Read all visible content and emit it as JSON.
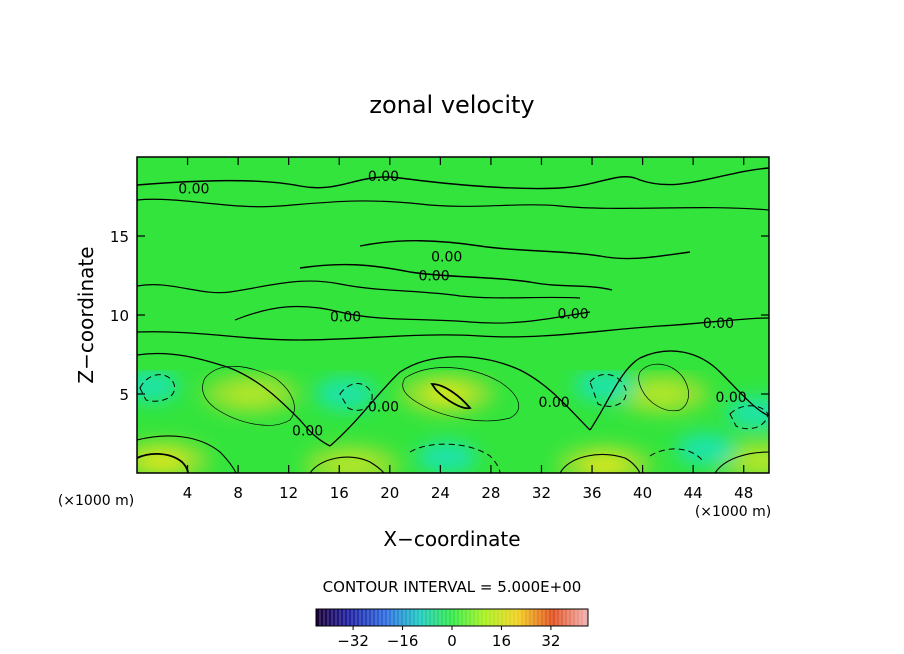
{
  "chart_data": {
    "type": "heatmap",
    "title": "zonal velocity",
    "xlabel": "X−coordinate",
    "ylabel": "Z−coordinate",
    "x_units_left": "(×1000 m)",
    "x_units_right": "(×1000 m)",
    "xlim": [
      0,
      50
    ],
    "ylim": [
      0,
      20
    ],
    "x_ticks": [
      4,
      8,
      12,
      16,
      20,
      24,
      28,
      32,
      36,
      40,
      44,
      48
    ],
    "y_ticks": [
      5,
      10,
      15
    ],
    "contour_interval_text": "CONTOUR INTERVAL = 5.000E+00",
    "contour_labels": [
      {
        "text": "0.00",
        "x": 4.5,
        "z": 18.0
      },
      {
        "text": "0.00",
        "x": 19.5,
        "z": 18.8
      },
      {
        "text": "0.00",
        "x": 24.5,
        "z": 13.7
      },
      {
        "text": "0.00",
        "x": 23.5,
        "z": 12.5
      },
      {
        "text": "0.00",
        "x": 16.5,
        "z": 9.9
      },
      {
        "text": "0.00",
        "x": 34.5,
        "z": 10.1
      },
      {
        "text": "0.00",
        "x": 46.0,
        "z": 9.5
      },
      {
        "text": "0.00",
        "x": 19.5,
        "z": 4.2
      },
      {
        "text": "0.00",
        "x": 33.0,
        "z": 4.5
      },
      {
        "text": "0.00",
        "x": 47.0,
        "z": 4.8
      },
      {
        "text": "0.00",
        "x": 13.5,
        "z": 2.7
      }
    ],
    "colorbar": {
      "min": -44,
      "max": 44,
      "ticks": [
        -32,
        -16,
        0,
        16,
        32
      ],
      "tick_labels": [
        "−32",
        "−16",
        "0",
        "16",
        "32"
      ]
    },
    "positive_cores": [
      {
        "x": 9.0,
        "z": 5.0,
        "peak": 8
      },
      {
        "x": 24.5,
        "z": 5.0,
        "peak": 10
      },
      {
        "x": 41.5,
        "z": 5.0,
        "peak": 8
      },
      {
        "x": 2.0,
        "z": 0.8,
        "peak": 10
      },
      {
        "x": 17.0,
        "z": 0.5,
        "peak": 8
      },
      {
        "x": 37.0,
        "z": 0.5,
        "peak": 10
      },
      {
        "x": 49.5,
        "z": 0.8,
        "peak": 8
      }
    ],
    "negative_cores": [
      {
        "x": 1.0,
        "z": 5.5,
        "peak": -6
      },
      {
        "x": 16.5,
        "z": 5.0,
        "peak": -4
      },
      {
        "x": 24.5,
        "z": 1.0,
        "peak": -6
      },
      {
        "x": 37.0,
        "z": 5.5,
        "peak": -5
      },
      {
        "x": 49.0,
        "z": 3.8,
        "peak": -7
      },
      {
        "x": 45.0,
        "z": 1.5,
        "peak": -4
      }
    ]
  }
}
